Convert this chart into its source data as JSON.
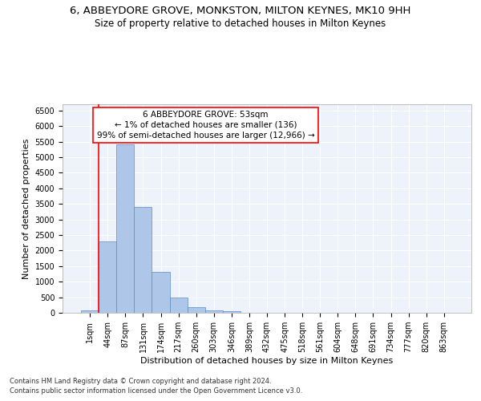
{
  "title": "6, ABBEYDORE GROVE, MONKSTON, MILTON KEYNES, MK10 9HH",
  "subtitle": "Size of property relative to detached houses in Milton Keynes",
  "xlabel": "Distribution of detached houses by size in Milton Keynes",
  "ylabel": "Number of detached properties",
  "footnote1": "Contains HM Land Registry data © Crown copyright and database right 2024.",
  "footnote2": "Contains public sector information licensed under the Open Government Licence v3.0.",
  "categories": [
    "1sqm",
    "44sqm",
    "87sqm",
    "131sqm",
    "174sqm",
    "217sqm",
    "260sqm",
    "303sqm",
    "346sqm",
    "389sqm",
    "432sqm",
    "475sqm",
    "518sqm",
    "561sqm",
    "604sqm",
    "648sqm",
    "691sqm",
    "734sqm",
    "777sqm",
    "820sqm",
    "863sqm"
  ],
  "bar_values": [
    80,
    2300,
    5400,
    3400,
    1310,
    480,
    190,
    80,
    50,
    0,
    0,
    0,
    0,
    0,
    0,
    0,
    0,
    0,
    0,
    0,
    0
  ],
  "bar_color": "#aec6e8",
  "bar_edge_color": "#5b8cc8",
  "vline_color": "red",
  "vline_x": 0,
  "annotation_text": "6 ABBEYDORE GROVE: 53sqm\n← 1% of detached houses are smaller (136)\n99% of semi-detached houses are larger (12,966) →",
  "annotation_box_color": "white",
  "annotation_box_edge_color": "red",
  "ylim": [
    0,
    6700
  ],
  "yticks": [
    0,
    500,
    1000,
    1500,
    2000,
    2500,
    3000,
    3500,
    4000,
    4500,
    5000,
    5500,
    6000,
    6500
  ],
  "bg_color": "#eef2fa",
  "grid_color": "white",
  "title_fontsize": 9.5,
  "subtitle_fontsize": 8.5,
  "xlabel_fontsize": 8,
  "ylabel_fontsize": 8,
  "tick_fontsize": 7,
  "annotation_fontsize": 7.5,
  "footnote_fontsize": 6
}
